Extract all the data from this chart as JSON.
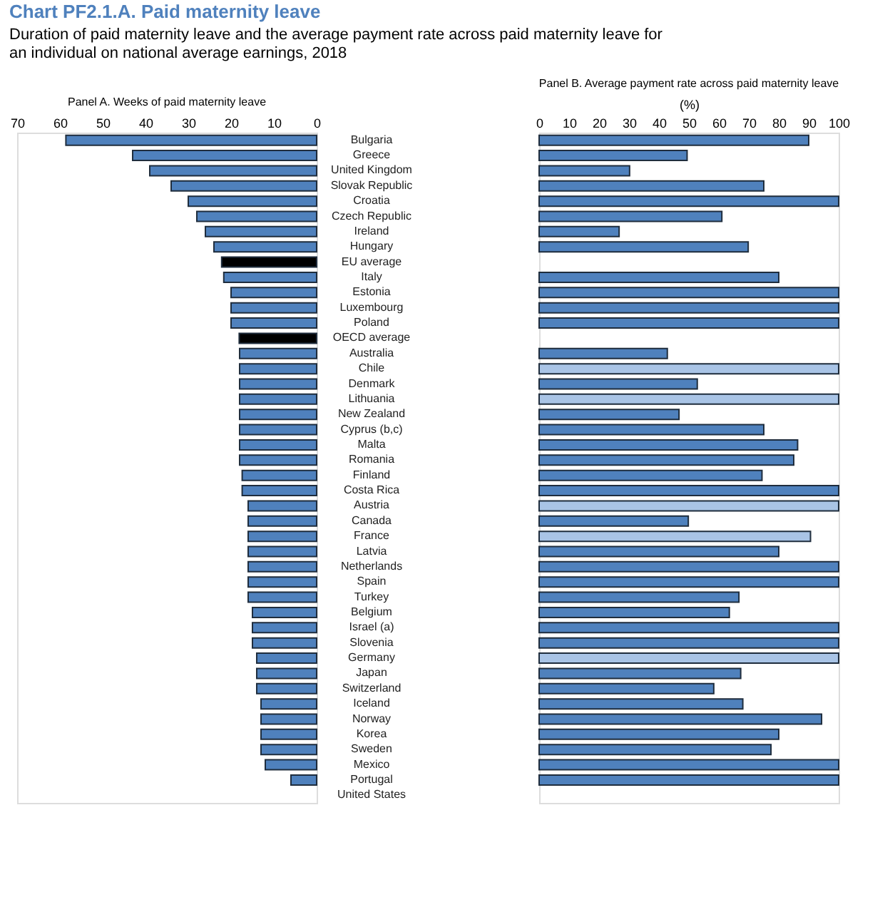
{
  "chart_data": [
    {
      "type": "bar",
      "orientation": "horizontal",
      "title": "Panel A. Weeks of paid maternity leave",
      "annotations": [
        "Chart PF2.1.A. Paid maternity leave",
        "Duration of paid maternity leave and the average payment rate across paid maternity leave for an individual on national average earnings, 2018"
      ],
      "categories": [
        "Bulgaria",
        "Greece",
        "United Kingdom",
        "Slovak Republic",
        "Croatia",
        "Czech Republic",
        "Ireland",
        "Hungary",
        "EU average",
        "Italy",
        "Estonia",
        "Luxembourg",
        "Poland",
        "OECD average",
        "Australia",
        "Chile",
        "Denmark",
        "Lithuania",
        "New Zealand",
        "Cyprus (b,c)",
        "Malta",
        "Romania",
        "Finland",
        "Costa Rica",
        "Austria",
        "Canada",
        "France",
        "Latvia",
        "Netherlands",
        "Spain",
        "Turkey",
        "Belgium",
        "Israel (a)",
        "Slovenia",
        "Germany",
        "Japan",
        "Switzerland",
        "Iceland",
        "Norway",
        "Korea",
        "Sweden",
        "Mexico",
        "Portugal",
        "United States"
      ],
      "values": [
        58.6,
        43,
        39,
        34,
        30,
        28,
        26,
        24,
        22.2,
        21.7,
        20,
        20,
        20,
        18.1,
        18,
        18,
        18,
        18,
        18,
        18,
        18,
        18,
        17.4,
        17.4,
        16,
        16,
        16,
        16,
        16,
        16,
        16,
        15,
        15,
        15,
        14,
        14,
        14,
        13,
        13,
        13,
        13,
        12,
        6,
        null
      ],
      "colors": [
        "#4f81bd",
        "#4f81bd",
        "#4f81bd",
        "#4f81bd",
        "#4f81bd",
        "#4f81bd",
        "#4f81bd",
        "#4f81bd",
        "#000000",
        "#4f81bd",
        "#4f81bd",
        "#4f81bd",
        "#4f81bd",
        "#000000",
        "#4f81bd",
        "#4f81bd",
        "#4f81bd",
        "#4f81bd",
        "#4f81bd",
        "#4f81bd",
        "#4f81bd",
        "#4f81bd",
        "#4f81bd",
        "#4f81bd",
        "#4f81bd",
        "#4f81bd",
        "#4f81bd",
        "#4f81bd",
        "#4f81bd",
        "#4f81bd",
        "#4f81bd",
        "#4f81bd",
        "#4f81bd",
        "#4f81bd",
        "#4f81bd",
        "#4f81bd",
        "#4f81bd",
        "#4f81bd",
        "#4f81bd",
        "#4f81bd",
        "#4f81bd",
        "#4f81bd",
        "#4f81bd",
        "#4f81bd"
      ],
      "xlim": [
        70,
        0
      ],
      "xticks": [
        70,
        60,
        50,
        40,
        30,
        20,
        10,
        0
      ],
      "grid": false
    },
    {
      "type": "bar",
      "orientation": "horizontal",
      "title": "Panel B. Average payment rate across paid maternity leave",
      "xlabel": "(%)",
      "values": [
        90,
        49.4,
        30.2,
        75,
        100,
        61,
        26.7,
        69.8,
        null,
        80,
        100,
        100,
        100,
        null,
        42.8,
        100,
        52.8,
        100,
        46.7,
        75,
        86.3,
        85,
        74.4,
        100,
        100,
        49.8,
        90.6,
        80,
        100,
        100,
        66.7,
        63.5,
        100,
        100,
        100,
        67.3,
        58.3,
        68,
        94.3,
        80,
        77.4,
        100,
        100,
        null
      ],
      "colors": [
        "#4f81bd",
        "#4f81bd",
        "#4f81bd",
        "#4f81bd",
        "#4f81bd",
        "#4f81bd",
        "#4f81bd",
        "#4f81bd",
        "#4f81bd",
        "#4f81bd",
        "#4f81bd",
        "#4f81bd",
        "#4f81bd",
        "#4f81bd",
        "#4f81bd",
        "#a9c4e6",
        "#4f81bd",
        "#a9c4e6",
        "#4f81bd",
        "#4f81bd",
        "#4f81bd",
        "#4f81bd",
        "#4f81bd",
        "#4f81bd",
        "#a9c4e6",
        "#4f81bd",
        "#a9c4e6",
        "#4f81bd",
        "#4f81bd",
        "#4f81bd",
        "#4f81bd",
        "#4f81bd",
        "#4f81bd",
        "#4f81bd",
        "#a9c4e6",
        "#4f81bd",
        "#4f81bd",
        "#4f81bd",
        "#4f81bd",
        "#4f81bd",
        "#4f81bd",
        "#4f81bd",
        "#4f81bd",
        "#4f81bd"
      ],
      "xlim": [
        0,
        100
      ],
      "xticks": [
        0,
        10,
        20,
        30,
        40,
        50,
        60,
        70,
        80,
        90,
        100
      ],
      "tick_labels": "x",
      "grid": false
    }
  ]
}
